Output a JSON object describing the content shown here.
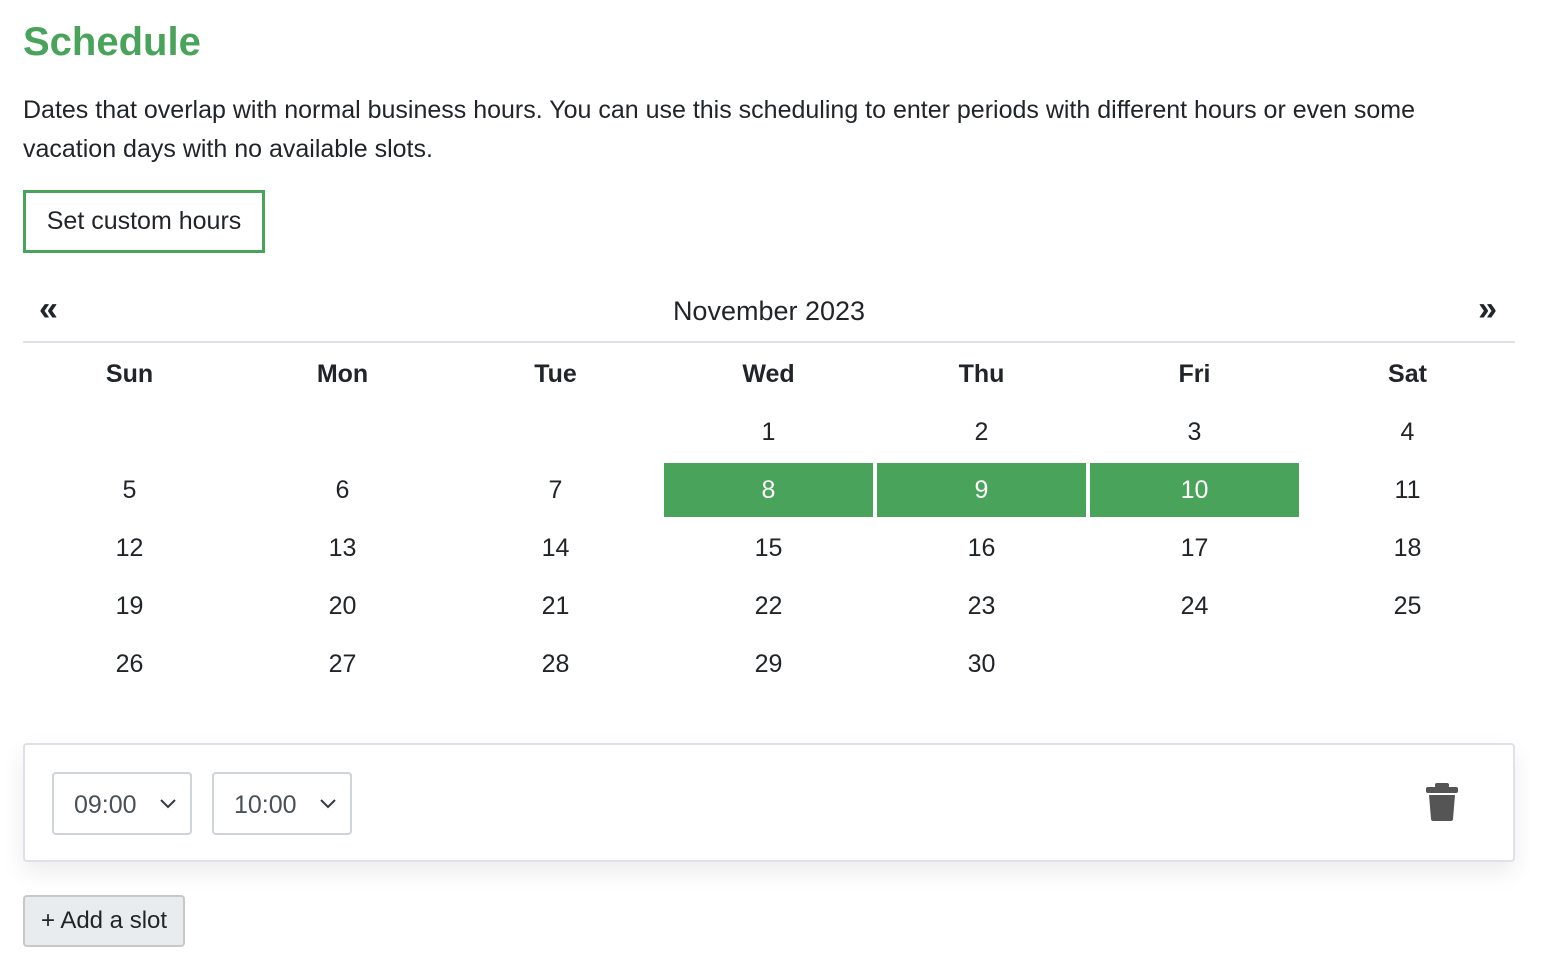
{
  "header": {
    "title": "Schedule",
    "description": "Dates that overlap with normal business hours. You can use this scheduling to enter periods with different hours or even some vacation days with no available slots."
  },
  "custom_hours_button": "Set custom hours",
  "calendar": {
    "prev_icon": "«",
    "next_icon": "»",
    "month_label": "November 2023",
    "weekdays": [
      "Sun",
      "Mon",
      "Tue",
      "Wed",
      "Thu",
      "Fri",
      "Sat"
    ],
    "weeks": [
      [
        "",
        "",
        "",
        "1",
        "2",
        "3",
        "4"
      ],
      [
        "5",
        "6",
        "7",
        "8",
        "9",
        "10",
        "11"
      ],
      [
        "12",
        "13",
        "14",
        "15",
        "16",
        "17",
        "18"
      ],
      [
        "19",
        "20",
        "21",
        "22",
        "23",
        "24",
        "25"
      ],
      [
        "26",
        "27",
        "28",
        "29",
        "30",
        "",
        ""
      ]
    ],
    "selected_days": [
      "8",
      "9",
      "10"
    ],
    "selected_color": "#4aa35a"
  },
  "slot": {
    "from": "09:00",
    "to": "10:00",
    "delete_icon": "trash-icon"
  },
  "add_slot_button": "+ Add a slot",
  "colors": {
    "accent": "#4aa35a",
    "border": "#dee2e6",
    "icon": "#555555"
  }
}
